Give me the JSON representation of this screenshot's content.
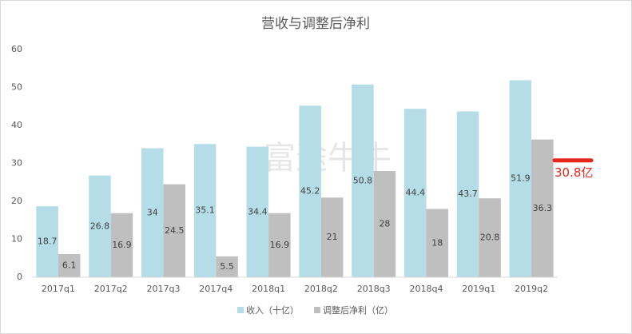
{
  "chart_data": {
    "type": "bar",
    "title": "营收与调整后净利",
    "watermark": "富途牛牛",
    "categories": [
      "2017q1",
      "2017q2",
      "2017q3",
      "2017q4",
      "2018q1",
      "2018q2",
      "2018q3",
      "2018q4",
      "2019q1",
      "2019q2"
    ],
    "series": [
      {
        "name": "收入（十亿）",
        "color": "#b4dde8",
        "values": [
          18.7,
          26.8,
          34,
          35.1,
          34.4,
          45.2,
          50.8,
          44.4,
          43.7,
          51.9
        ]
      },
      {
        "name": "调整后净利（亿）",
        "color": "#bfbfbf",
        "values": [
          6.1,
          16.9,
          24.5,
          5.5,
          16.9,
          21,
          28,
          18,
          20.8,
          36.3
        ]
      }
    ],
    "ylim": [
      0,
      60
    ],
    "yticks": [
      0,
      10,
      20,
      30,
      40,
      50,
      60
    ],
    "grid": false,
    "legend": "bottom",
    "annotation": {
      "value": 30.8,
      "label": "30.8亿",
      "color": "#e8261b"
    }
  }
}
